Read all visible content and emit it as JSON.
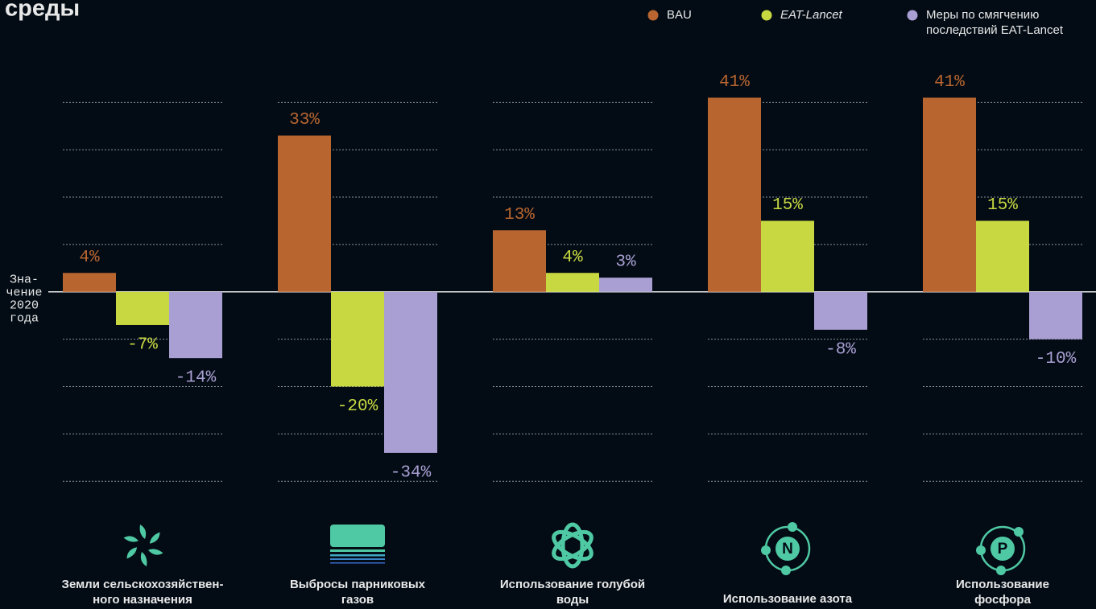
{
  "chart_data": {
    "type": "bar",
    "title": "среды",
    "categories": [
      [
        "Земли сельскохозяйствен-",
        "ного назначения"
      ],
      [
        "Выбросы парниковых",
        "газов"
      ],
      [
        "Использование голубой",
        "воды"
      ],
      [
        "Использование азота"
      ],
      [
        "Использование",
        "фосфора"
      ]
    ],
    "series": [
      {
        "name": [
          "BAU"
        ],
        "color": "#b8652f",
        "values": [
          4,
          33,
          13,
          41,
          41
        ],
        "value_labels": [
          "4%",
          "33%",
          "13%",
          "41%",
          "41%"
        ]
      },
      {
        "name": [
          "EAT-Lancet"
        ],
        "color": "#c8d840",
        "values": [
          -7,
          -20,
          4,
          15,
          15
        ],
        "value_labels": [
          "-7%",
          "-20%",
          "4%",
          "15%",
          "15%"
        ]
      },
      {
        "name": [
          "Меры по смягчению",
          "последствий EAT-Lancet"
        ],
        "color": "#a99fd2",
        "values": [
          -14,
          -34,
          3,
          -8,
          -10
        ],
        "value_labels": [
          "-14%",
          "-34%",
          "3%",
          "-8%",
          "-10%"
        ]
      }
    ],
    "zero_label": [
      "Зна-",
      "чение",
      "2020",
      "года"
    ],
    "icon_labels": [
      "N",
      "P"
    ],
    "ylim": [
      -42,
      46
    ],
    "yticks": [
      -40,
      -30,
      -20,
      -10,
      0,
      10,
      20,
      30,
      40
    ],
    "grid": true
  }
}
